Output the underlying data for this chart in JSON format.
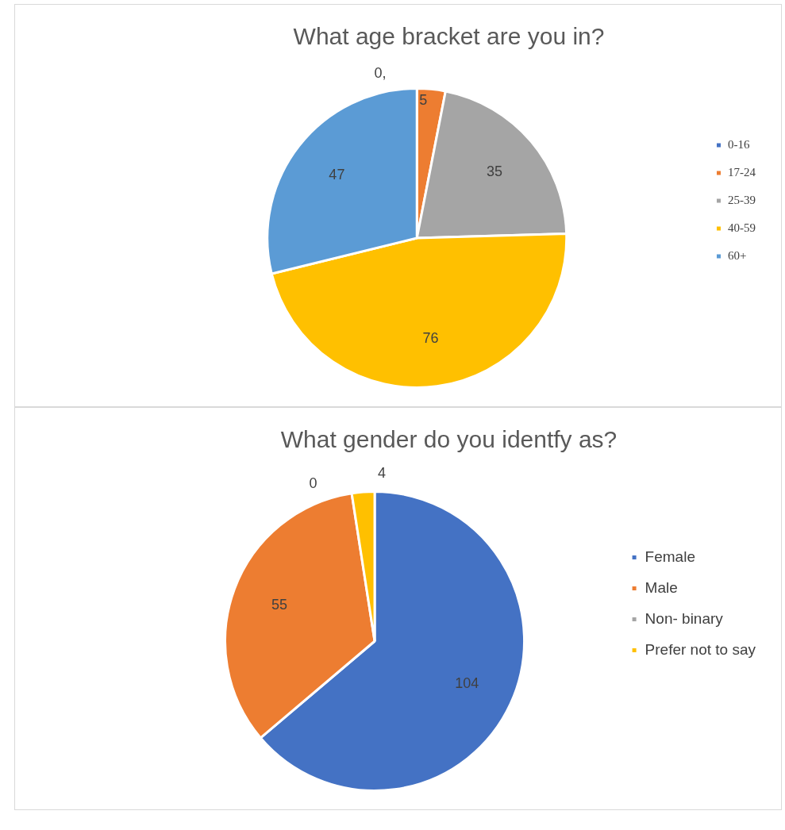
{
  "chart_data": [
    {
      "type": "pie",
      "title": "What age bracket are you in?",
      "categories": [
        "0-16",
        "17-24",
        "25-39",
        "40-59",
        "60+"
      ],
      "values": [
        0,
        5,
        35,
        76,
        47
      ],
      "value_labels": [
        "0,",
        "5",
        "35",
        "76",
        "47"
      ],
      "colors": [
        "#4472c4",
        "#ed7d31",
        "#a5a5a5",
        "#ffc000",
        "#5b9bd5"
      ],
      "legend": "right"
    },
    {
      "type": "pie",
      "title": "What gender do you identfy as?",
      "categories": [
        "Female",
        "Male",
        "Non- binary",
        "Prefer not to say"
      ],
      "values": [
        104,
        55,
        0,
        4
      ],
      "value_labels": [
        "104",
        "55",
        "0",
        "4"
      ],
      "colors": [
        "#4472c4",
        "#ed7d31",
        "#a5a5a5",
        "#ffc000"
      ],
      "legend": "right"
    }
  ]
}
